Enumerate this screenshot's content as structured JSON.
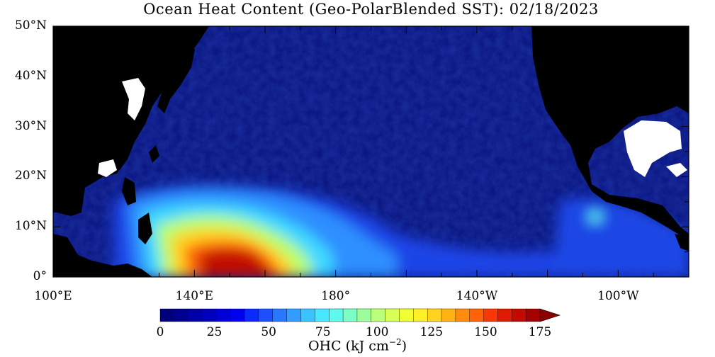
{
  "map": {
    "title": "Ocean Heat Content (Geo-PolarBlended SST): 02/18/2023",
    "lat_labels": [
      "50°N",
      "40°N",
      "30°N",
      "20°N",
      "10°N",
      "0°"
    ],
    "lon_labels": [
      "100°E",
      "140°E",
      "180°",
      "140°W",
      "100°W"
    ],
    "extent": {
      "lon_west": 100,
      "lon_east": 280,
      "lat_south": 0,
      "lat_north": 50
    },
    "colors": {
      "land": "#000000",
      "ocean_low": "#0a1580",
      "ice_or_missing": "#ffffff",
      "warm_pool_peak": "#8b0000"
    }
  },
  "colorbar": {
    "tick_labels": [
      "0",
      "25",
      "50",
      "75",
      "100",
      "125",
      "150",
      "175"
    ],
    "title_main": "OHC (kJ cm",
    "title_exp": "−2",
    "title_end": ")",
    "steps": 27,
    "range": [
      0,
      175
    ],
    "extend": "max",
    "colors": [
      "#00007a",
      "#00008f",
      "#0000a6",
      "#0000bd",
      "#0000d6",
      "#0000ee",
      "#0b2aff",
      "#1c50ff",
      "#2878ff",
      "#339dff",
      "#3cc3ff",
      "#48e6ff",
      "#5ff8ee",
      "#7cfdc6",
      "#9cfd9c",
      "#bbff7a",
      "#d9ff57",
      "#f0ff35",
      "#fff02a",
      "#ffd21f",
      "#ffb214",
      "#ff8c0e",
      "#ff6209",
      "#f83806",
      "#df1a03",
      "#c20a00",
      "#a40000"
    ],
    "arrow_color": "#8b0000"
  }
}
